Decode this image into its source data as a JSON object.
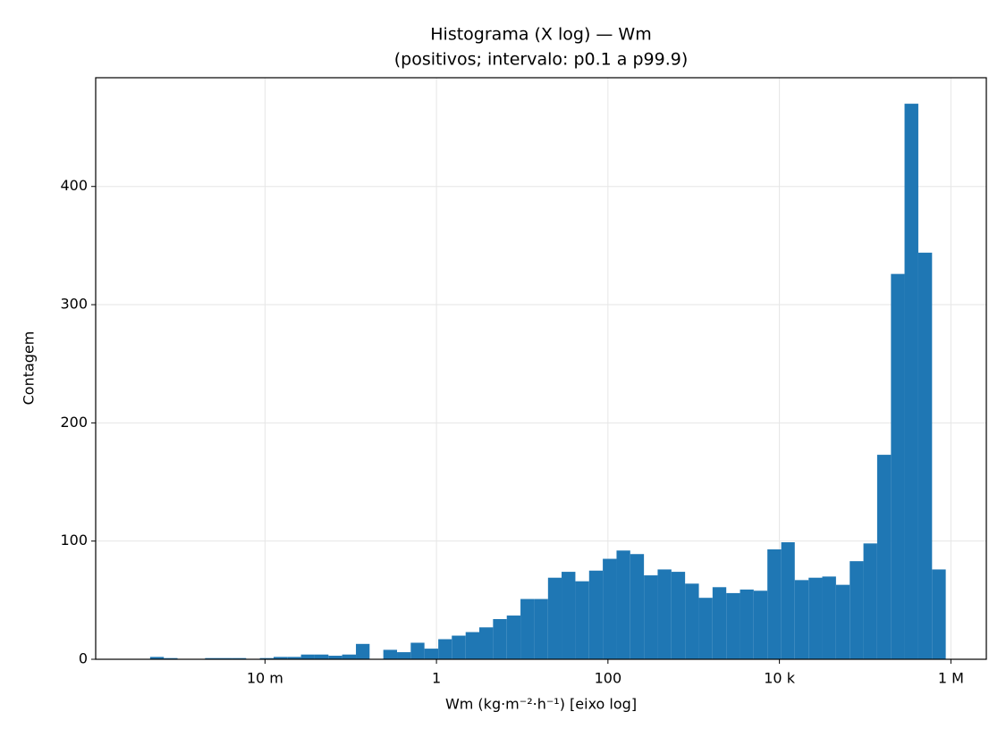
{
  "chart_data": {
    "type": "histogram",
    "title": "Histograma (X log) — Wm",
    "subtitle": "(positivos; intervalo: p0.1 a p99.9)",
    "x_label": "Wm (kg·m⁻²·h⁻¹)  [eixo log]",
    "y_label": "Contagem",
    "x_scale": "log",
    "color": "#1f77b4",
    "grid": true,
    "bins": [
      0.000316,
      0.000457,
      0.000661,
      0.000955,
      0.00138,
      0.002,
      0.00288,
      0.00417,
      0.00603,
      0.00871,
      0.0126,
      0.0182,
      0.0263,
      0.038,
      0.055,
      0.0794,
      0.115,
      0.166,
      0.24,
      0.347,
      0.501,
      0.724,
      1.05,
      1.51,
      2.19,
      3.16,
      4.57,
      6.61,
      9.55,
      13.8,
      20,
      28.8,
      41.7,
      60.3,
      87.1,
      126,
      182,
      263,
      380,
      550,
      794,
      1150,
      1660,
      2400,
      3470,
      5010,
      7240,
      10500,
      15100,
      21900,
      31600,
      45700,
      66100,
      95500,
      138000,
      200000,
      288000,
      417000,
      603000,
      871000
    ],
    "counts": [
      0,
      2,
      1,
      0,
      0,
      1,
      1,
      1,
      0,
      1,
      2,
      2,
      4,
      4,
      3,
      4,
      13,
      0,
      8,
      6,
      14,
      9,
      17,
      20,
      23,
      27,
      34,
      37,
      51,
      51,
      69,
      74,
      66,
      75,
      85,
      92,
      89,
      71,
      76,
      74,
      64,
      52,
      61,
      56,
      59,
      58,
      93,
      99,
      67,
      69,
      70,
      63,
      83,
      98,
      173,
      326,
      470,
      344,
      76
    ],
    "xlim": [
      0.000106,
      2590000
    ],
    "ylim": [
      0,
      492
    ],
    "xticks": [
      {
        "value": 0.01,
        "label": "10 m"
      },
      1,
      100,
      {
        "value": 10000,
        "label": "10 k"
      },
      {
        "value": 1000000,
        "label": "1 M"
      }
    ],
    "yticks": [
      0,
      100,
      200,
      300,
      400
    ]
  }
}
